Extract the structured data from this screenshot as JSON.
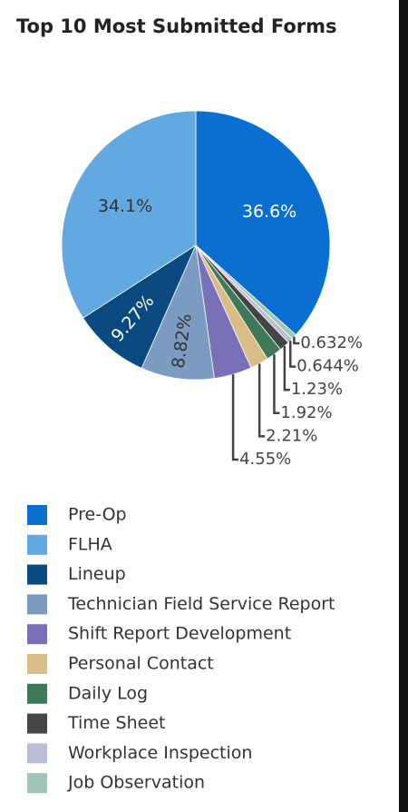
{
  "chart_data": {
    "type": "pie",
    "title": "Top 10 Most Submitted Forms",
    "categories": [
      "Pre-Op",
      "FLHA",
      "Lineup",
      "Technician Field Service Report",
      "Shift Report Development",
      "Personal Contact",
      "Daily Log",
      "Time Sheet",
      "Workplace Inspection",
      "Job Observation"
    ],
    "values": [
      36.6,
      34.1,
      9.27,
      8.82,
      4.55,
      2.21,
      1.92,
      1.23,
      0.644,
      0.632
    ],
    "value_labels": [
      "36.6%",
      "34.1%",
      "9.27%",
      "8.82%",
      "4.55%",
      "2.21%",
      "1.92%",
      "1.23%",
      "0.644%",
      "0.632%"
    ],
    "colors": [
      "#0a6fd0",
      "#62a9e2",
      "#0b4a80",
      "#7b9cc0",
      "#7a70b8",
      "#d8bd86",
      "#3e7a5a",
      "#454545",
      "#b9bed6",
      "#a2c6b6"
    ],
    "legend": "bottom"
  }
}
